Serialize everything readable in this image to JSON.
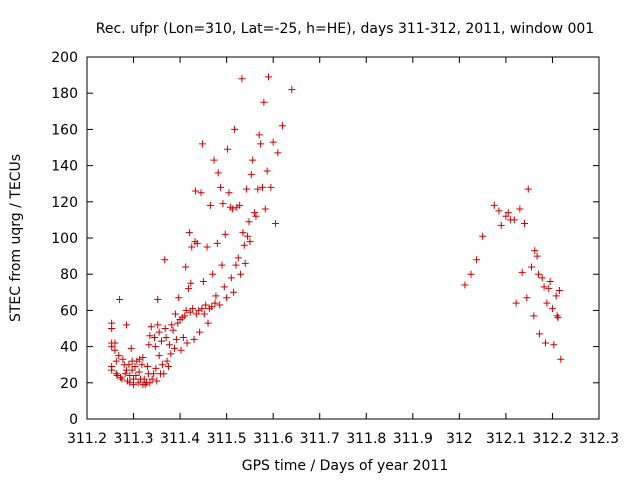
{
  "chart_data": {
    "type": "scatter",
    "title": "Rec. ufpr (Lon=310, Lat=-25, h=HE), days 311-312, 2011, window 001",
    "xlabel": "GPS time / Days of year 2011",
    "ylabel": "STEC from uqrg / TECUs",
    "xlim": [
      311.2,
      312.3
    ],
    "ylim": [
      0,
      200
    ],
    "xticks": [
      "311.2",
      "311.3",
      "311.4",
      "311.5",
      "311.6",
      "311.7",
      "311.8",
      "311.9",
      "312",
      "312.1",
      "312.2",
      "312.3"
    ],
    "yticks": [
      "0",
      "20",
      "40",
      "60",
      "80",
      "100",
      "120",
      "140",
      "160",
      "180",
      "200"
    ],
    "marker": "plus",
    "color": "#cc0000",
    "grid": false,
    "series": [
      {
        "points": [
          [
            311.253,
            53
          ],
          [
            311.253,
            50
          ],
          [
            311.253,
            42
          ],
          [
            311.253,
            40
          ],
          [
            311.253,
            29
          ],
          [
            311.253,
            27
          ],
          [
            311.26,
            42
          ],
          [
            311.26,
            38
          ],
          [
            311.263,
            32
          ],
          [
            311.263,
            25
          ],
          [
            311.265,
            24
          ],
          [
            311.268,
            35
          ],
          [
            311.27,
            66
          ],
          [
            311.272,
            23
          ],
          [
            311.275,
            22
          ],
          [
            311.277,
            33
          ],
          [
            311.28,
            30
          ],
          [
            311.282,
            25
          ],
          [
            311.285,
            52
          ],
          [
            311.285,
            27
          ],
          [
            311.287,
            21
          ],
          [
            311.29,
            30
          ],
          [
            311.292,
            24
          ],
          [
            311.292,
            20
          ],
          [
            311.295,
            39
          ],
          [
            311.297,
            32
          ],
          [
            311.297,
            27
          ],
          [
            311.3,
            22
          ],
          [
            311.3,
            19
          ],
          [
            311.303,
            29
          ],
          [
            311.305,
            24
          ],
          [
            311.307,
            32
          ],
          [
            311.31,
            20
          ],
          [
            311.312,
            26
          ],
          [
            311.313,
            33
          ],
          [
            311.315,
            22
          ],
          [
            311.318,
            30
          ],
          [
            311.32,
            34
          ],
          [
            311.32,
            19
          ],
          [
            311.323,
            22
          ],
          [
            311.325,
            19
          ],
          [
            311.328,
            20
          ],
          [
            311.33,
            29
          ],
          [
            311.332,
            25
          ],
          [
            311.333,
            41
          ],
          [
            311.335,
            46
          ],
          [
            311.335,
            20
          ],
          [
            311.338,
            51
          ],
          [
            311.34,
            22
          ],
          [
            311.343,
            25
          ],
          [
            311.345,
            45
          ],
          [
            311.347,
            40
          ],
          [
            311.348,
            28
          ],
          [
            311.35,
            21
          ],
          [
            311.352,
            52
          ],
          [
            311.352,
            66
          ],
          [
            311.355,
            35
          ],
          [
            311.355,
            48
          ],
          [
            311.358,
            25
          ],
          [
            311.36,
            43
          ],
          [
            311.362,
            30
          ],
          [
            311.365,
            25
          ],
          [
            311.367,
            88
          ],
          [
            311.368,
            50
          ],
          [
            311.37,
            45
          ],
          [
            311.372,
            32
          ],
          [
            311.375,
            29
          ],
          [
            311.377,
            41
          ],
          [
            311.38,
            36
          ],
          [
            311.382,
            52
          ],
          [
            311.385,
            49
          ],
          [
            311.388,
            39
          ],
          [
            311.39,
            58
          ],
          [
            311.392,
            44
          ],
          [
            311.395,
            53
          ],
          [
            311.397,
            67
          ],
          [
            311.4,
            55
          ],
          [
            311.402,
            38
          ],
          [
            311.405,
            56
          ],
          [
            311.407,
            45
          ],
          [
            311.41,
            57
          ],
          [
            311.412,
            84
          ],
          [
            311.413,
            60
          ],
          [
            311.415,
            42
          ],
          [
            311.418,
            72
          ],
          [
            311.42,
            103
          ],
          [
            311.422,
            59
          ],
          [
            311.423,
            75
          ],
          [
            311.425,
            95
          ],
          [
            311.427,
            61
          ],
          [
            311.43,
            44
          ],
          [
            311.432,
            98
          ],
          [
            311.433,
            126
          ],
          [
            311.435,
            58
          ],
          [
            311.437,
            97
          ],
          [
            311.44,
            60
          ],
          [
            311.442,
            48
          ],
          [
            311.445,
            125
          ],
          [
            311.447,
            61
          ],
          [
            311.448,
            152
          ],
          [
            311.45,
            76
          ],
          [
            311.452,
            58
          ],
          [
            311.455,
            63
          ],
          [
            311.458,
            95
          ],
          [
            311.46,
            53
          ],
          [
            311.463,
            61
          ],
          [
            311.465,
            118
          ],
          [
            311.468,
            62
          ],
          [
            311.47,
            80
          ],
          [
            311.473,
            143
          ],
          [
            311.475,
            64
          ],
          [
            311.477,
            68
          ],
          [
            311.48,
            97
          ],
          [
            311.482,
            136
          ],
          [
            311.485,
            63
          ],
          [
            311.487,
            128
          ],
          [
            311.49,
            85
          ],
          [
            311.492,
            119
          ],
          [
            311.495,
            73
          ],
          [
            311.497,
            102
          ],
          [
            311.5,
            67
          ],
          [
            311.502,
            149
          ],
          [
            311.505,
            125
          ],
          [
            311.508,
            117
          ],
          [
            311.51,
            78
          ],
          [
            311.513,
            116
          ],
          [
            311.515,
            70
          ],
          [
            311.517,
            160
          ],
          [
            311.52,
            85
          ],
          [
            311.522,
            117
          ],
          [
            311.525,
            89
          ],
          [
            311.528,
            118
          ],
          [
            311.53,
            80
          ],
          [
            311.533,
            188
          ],
          [
            311.535,
            103
          ],
          [
            311.538,
            96
          ],
          [
            311.54,
            86
          ],
          [
            311.543,
            127
          ],
          [
            311.545,
            101
          ],
          [
            311.548,
            109
          ],
          [
            311.55,
            98
          ],
          [
            311.553,
            135
          ],
          [
            311.556,
            143
          ],
          [
            311.56,
            114
          ],
          [
            311.563,
            112
          ],
          [
            311.567,
            127
          ],
          [
            311.57,
            157
          ],
          [
            311.573,
            152
          ],
          [
            311.577,
            128
          ],
          [
            311.58,
            175
          ],
          [
            311.583,
            116
          ],
          [
            311.587,
            137
          ],
          [
            311.59,
            189
          ],
          [
            311.595,
            128
          ],
          [
            311.6,
            153
          ],
          [
            311.605,
            108
          ],
          [
            311.61,
            147
          ],
          [
            311.62,
            162
          ],
          [
            311.64,
            182
          ],
          [
            312.012,
            74
          ],
          [
            312.025,
            80
          ],
          [
            312.037,
            88
          ],
          [
            312.05,
            101
          ],
          [
            312.075,
            118
          ],
          [
            312.085,
            115
          ],
          [
            312.09,
            107
          ],
          [
            312.1,
            112
          ],
          [
            312.105,
            114
          ],
          [
            312.11,
            110
          ],
          [
            312.118,
            110
          ],
          [
            312.122,
            64
          ],
          [
            312.13,
            116
          ],
          [
            312.135,
            81
          ],
          [
            312.14,
            108
          ],
          [
            312.145,
            67
          ],
          [
            312.148,
            127
          ],
          [
            312.155,
            84
          ],
          [
            312.16,
            57
          ],
          [
            312.162,
            93
          ],
          [
            312.167,
            90
          ],
          [
            312.17,
            80
          ],
          [
            312.172,
            47
          ],
          [
            312.178,
            78
          ],
          [
            312.182,
            73
          ],
          [
            312.185,
            42
          ],
          [
            312.188,
            64
          ],
          [
            312.192,
            72
          ],
          [
            312.195,
            76
          ],
          [
            312.2,
            61
          ],
          [
            312.203,
            41
          ],
          [
            312.208,
            68
          ],
          [
            312.21,
            57
          ],
          [
            312.212,
            56
          ],
          [
            312.215,
            71
          ],
          [
            312.218,
            33
          ]
        ]
      }
    ]
  }
}
